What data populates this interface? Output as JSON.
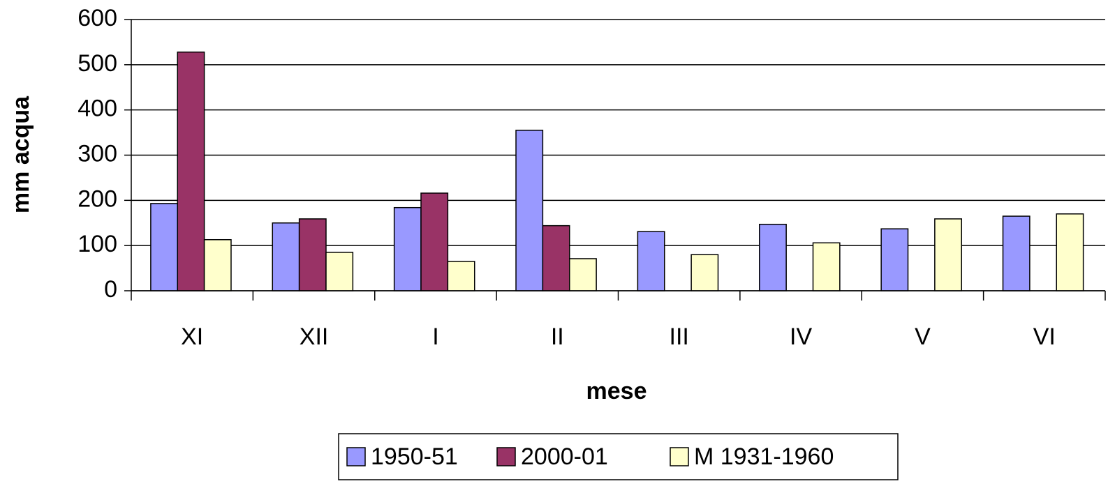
{
  "chart_data": {
    "type": "bar",
    "xlabel": "mese",
    "ylabel": "mm acqua",
    "categories": [
      "XI",
      "XII",
      "I",
      "II",
      "III",
      "IV",
      "V",
      "VI"
    ],
    "series": [
      {
        "name": "1950-51",
        "color": "#9999ff",
        "values": [
          193,
          150,
          184,
          355,
          131,
          147,
          137,
          165
        ]
      },
      {
        "name": "2000-01",
        "color": "#993366",
        "values": [
          528,
          159,
          216,
          144,
          null,
          null,
          null,
          null
        ]
      },
      {
        "name": "M 1931-1960",
        "color": "#ffffcc",
        "values": [
          113,
          85,
          65,
          71,
          80,
          106,
          159,
          170
        ]
      }
    ],
    "ylim": [
      0,
      600
    ],
    "yticks": [
      0,
      100,
      200,
      300,
      400,
      500,
      600
    ],
    "grid": true,
    "legend": "bottom"
  }
}
